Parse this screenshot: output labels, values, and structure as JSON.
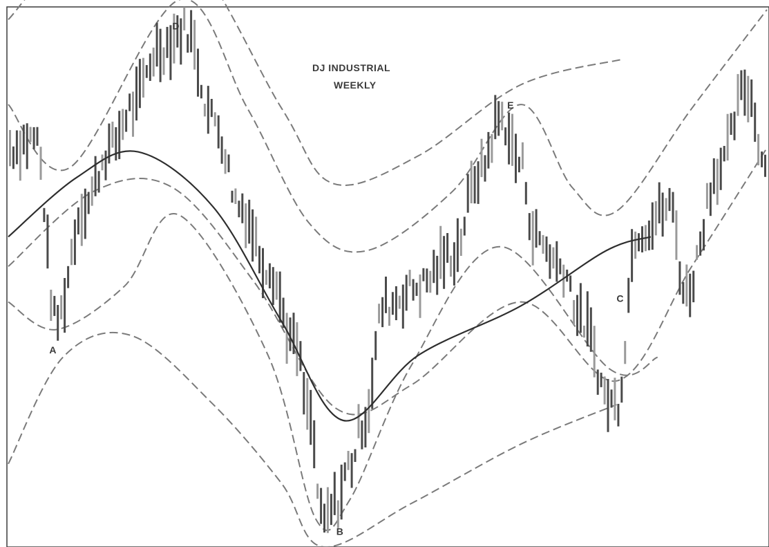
{
  "chart_data": {
    "type": "bar",
    "title": "DJ INDUSTRIAL",
    "subtitle": "WEEKLY",
    "colors": {
      "dark_bar": "#4a4a4a",
      "light_bar": "#9a9a9a",
      "envelope": "#7a7a7a",
      "trend": "#2e2e2e",
      "frame": "#3a3a3a"
    },
    "labels": [
      {
        "text": "D",
        "x": 48,
        "y": 100
      },
      {
        "text": "E",
        "x": 146,
        "y": 60
      },
      {
        "text": "A",
        "x": 12,
        "y": -64
      },
      {
        "text": "B",
        "x": 96,
        "y": -156
      },
      {
        "text": "C",
        "x": 178,
        "y": -38
      }
    ],
    "xlim": [
      0,
      222
    ],
    "ylim": [
      -160,
      110
    ],
    "bars": {
      "count": 222,
      "path": [
        [
          0,
          40
        ],
        [
          8,
          45
        ],
        [
          14,
          -48
        ],
        [
          22,
          10
        ],
        [
          30,
          40
        ],
        [
          36,
          60
        ],
        [
          44,
          90
        ],
        [
          52,
          100
        ],
        [
          60,
          55
        ],
        [
          68,
          10
        ],
        [
          76,
          -20
        ],
        [
          84,
          -60
        ],
        [
          88,
          -95
        ],
        [
          92,
          -150
        ],
        [
          96,
          -140
        ],
        [
          100,
          -120
        ],
        [
          104,
          -98
        ],
        [
          110,
          -40
        ],
        [
          120,
          -30
        ],
        [
          130,
          -14
        ],
        [
          138,
          28
        ],
        [
          144,
          55
        ],
        [
          150,
          32
        ],
        [
          154,
          -5
        ],
        [
          162,
          -20
        ],
        [
          168,
          -48
        ],
        [
          176,
          -88
        ],
        [
          178,
          -90
        ],
        [
          184,
          -2
        ],
        [
          194,
          10
        ],
        [
          198,
          -34
        ],
        [
          208,
          30
        ],
        [
          216,
          70
        ],
        [
          222,
          30
        ]
      ]
    },
    "envelopes": [
      {
        "name": "",
        "points": [
          [
            0,
            105
          ],
          [
            20,
            140
          ],
          [
            50,
            145
          ],
          [
            80,
            60
          ],
          [
            95,
            22
          ],
          [
            120,
            36
          ],
          [
            150,
            72
          ],
          [
            180,
            85
          ]
        ]
      },
      {
        "name": "",
        "points": [
          [
            0,
            62
          ],
          [
            18,
            30
          ],
          [
            50,
            115
          ],
          [
            70,
            60
          ],
          [
            88,
            2
          ],
          [
            105,
            -12
          ],
          [
            130,
            18
          ],
          [
            150,
            62
          ],
          [
            165,
            20
          ],
          [
            178,
            8
          ],
          [
            200,
            60
          ],
          [
            222,
            110
          ]
        ]
      },
      {
        "name": "",
        "points": [
          [
            0,
            -20
          ],
          [
            25,
            18
          ],
          [
            48,
            20
          ],
          [
            72,
            -28
          ],
          [
            96,
            -92
          ],
          [
            118,
            -80
          ],
          [
            150,
            -38
          ],
          [
            178,
            -78
          ],
          [
            200,
            -20
          ],
          [
            222,
            40
          ]
        ]
      },
      {
        "name": "",
        "points": [
          [
            0,
            -38
          ],
          [
            14,
            -52
          ],
          [
            34,
            -30
          ],
          [
            50,
            6
          ],
          [
            76,
            -65
          ],
          [
            90,
            -148
          ],
          [
            100,
            -138
          ],
          [
            118,
            -70
          ],
          [
            144,
            -10
          ],
          [
            176,
            -72
          ],
          [
            190,
            -66
          ]
        ]
      },
      {
        "name": "",
        "points": [
          [
            0,
            -120
          ],
          [
            16,
            -66
          ],
          [
            36,
            -55
          ],
          [
            60,
            -90
          ],
          [
            80,
            -130
          ],
          [
            92,
            -162
          ],
          [
            118,
            -140
          ],
          [
            150,
            -110
          ],
          [
            178,
            -90
          ]
        ]
      }
    ],
    "trendlines": [
      {
        "name": "",
        "points": [
          [
            0,
            -5
          ],
          [
            20,
            25
          ],
          [
            38,
            38
          ],
          [
            60,
            10
          ],
          [
            80,
            -48
          ],
          [
            98,
            -98
          ],
          [
            120,
            -65
          ],
          [
            150,
            -40
          ],
          [
            175,
            -12
          ],
          [
            188,
            -5
          ]
        ]
      }
    ]
  }
}
